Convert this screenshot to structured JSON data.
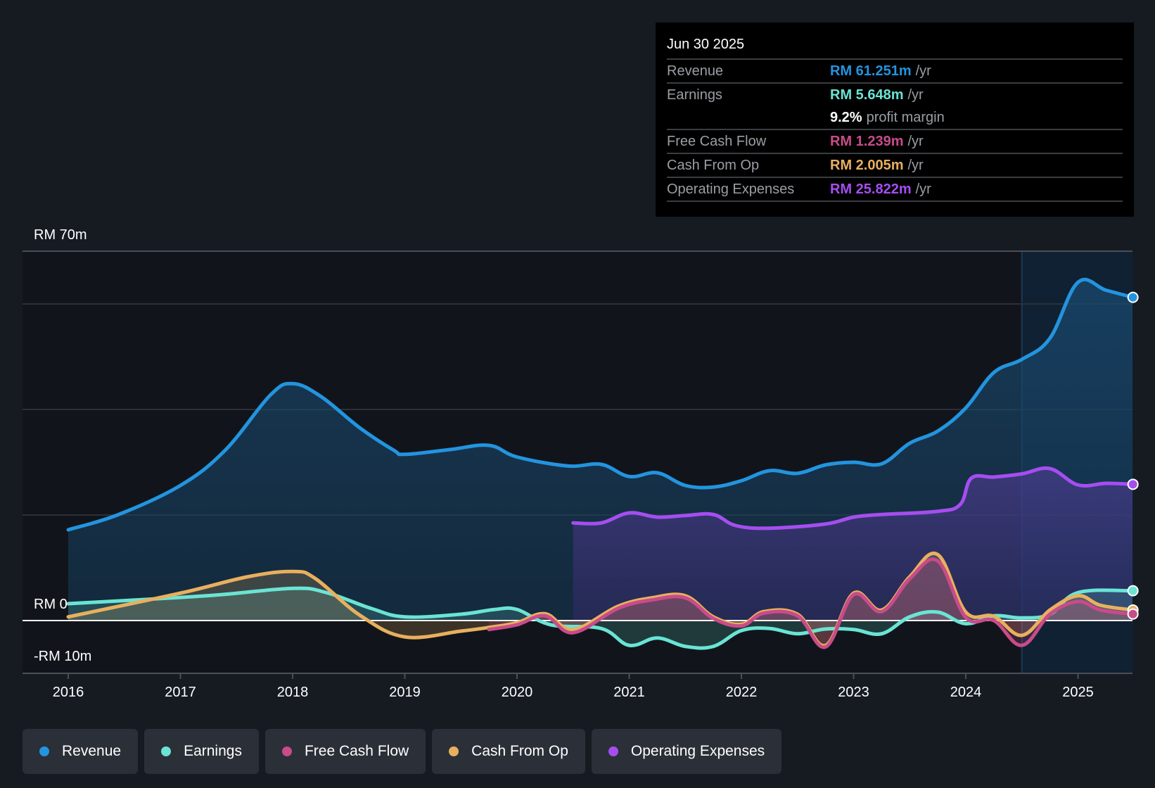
{
  "tooltip": {
    "date": "Jun 30 2025",
    "rows": [
      {
        "label": "Revenue",
        "value": "RM 61.251m",
        "unit": "/yr",
        "color": "#2394df"
      },
      {
        "label": "Earnings",
        "value": "RM 5.648m",
        "unit": "/yr",
        "color": "#6ae4d4"
      },
      {
        "label": "",
        "margin_value": "9.2%",
        "margin_text": "profit margin"
      },
      {
        "label": "Free Cash Flow",
        "value": "RM 1.239m",
        "unit": "/yr",
        "color": "#c84b8a"
      },
      {
        "label": "Cash From Op",
        "value": "RM 2.005m",
        "unit": "/yr",
        "color": "#e8b05e"
      },
      {
        "label": "Operating Expenses",
        "value": "RM 25.822m",
        "unit": "/yr",
        "color": "#a54ef0"
      }
    ]
  },
  "legend": [
    {
      "label": "Revenue",
      "color": "#2394df"
    },
    {
      "label": "Earnings",
      "color": "#6ae4d4"
    },
    {
      "label": "Free Cash Flow",
      "color": "#c84b8a"
    },
    {
      "label": "Cash From Op",
      "color": "#e8b05e"
    },
    {
      "label": "Operating Expenses",
      "color": "#a54ef0"
    }
  ],
  "chart_data": {
    "type": "area",
    "title": "",
    "xlabel": "",
    "ylabel": "",
    "y_tick_labels": [
      {
        "value": 70,
        "label": "RM 70m"
      },
      {
        "value": 0,
        "label": "RM 0"
      },
      {
        "value": -10,
        "label": "-RM 10m"
      }
    ],
    "gridlines": [
      70,
      60,
      40,
      20
    ],
    "ylim": [
      -10,
      70
    ],
    "xlim": [
      2015.6,
      2025.49
    ],
    "x_ticks": [
      2016,
      2017,
      2018,
      2019,
      2020,
      2021,
      2022,
      2023,
      2024,
      2025
    ],
    "highlight_start": 2024.5,
    "grid": true,
    "legend_position": "bottom-left",
    "series": [
      {
        "name": "Revenue",
        "color": "#2394df",
        "points": [
          [
            2016.0,
            17.2
          ],
          [
            2016.45,
            20.1
          ],
          [
            2017.0,
            25.6
          ],
          [
            2017.4,
            32.3
          ],
          [
            2017.8,
            42.7
          ],
          [
            2018.0,
            44.9
          ],
          [
            2018.25,
            42.5
          ],
          [
            2018.6,
            36.5
          ],
          [
            2018.9,
            32.3
          ],
          [
            2019.0,
            31.5
          ],
          [
            2019.4,
            32.4
          ],
          [
            2019.75,
            33.2
          ],
          [
            2020.0,
            31.0
          ],
          [
            2020.45,
            29.3
          ],
          [
            2020.75,
            29.6
          ],
          [
            2021.0,
            27.3
          ],
          [
            2021.25,
            28.0
          ],
          [
            2021.5,
            25.6
          ],
          [
            2021.75,
            25.3
          ],
          [
            2022.0,
            26.5
          ],
          [
            2022.25,
            28.4
          ],
          [
            2022.5,
            27.9
          ],
          [
            2022.75,
            29.5
          ],
          [
            2023.0,
            30.0
          ],
          [
            2023.25,
            29.7
          ],
          [
            2023.5,
            33.6
          ],
          [
            2023.75,
            35.9
          ],
          [
            2024.0,
            40.3
          ],
          [
            2024.25,
            47.0
          ],
          [
            2024.5,
            49.5
          ],
          [
            2024.75,
            53.5
          ],
          [
            2025.0,
            64.1
          ],
          [
            2025.25,
            62.6
          ],
          [
            2025.49,
            61.251
          ]
        ]
      },
      {
        "name": "Operating Expenses",
        "color": "#a54ef0",
        "points": [
          [
            2020.5,
            18.5
          ],
          [
            2020.75,
            18.5
          ],
          [
            2021.0,
            20.4
          ],
          [
            2021.25,
            19.6
          ],
          [
            2021.5,
            19.9
          ],
          [
            2021.75,
            20.1
          ],
          [
            2021.95,
            18.0
          ],
          [
            2022.25,
            17.5
          ],
          [
            2022.75,
            18.3
          ],
          [
            2023.0,
            19.6
          ],
          [
            2023.25,
            20.1
          ],
          [
            2023.75,
            20.7
          ],
          [
            2023.95,
            22.0
          ],
          [
            2024.05,
            27.0
          ],
          [
            2024.25,
            27.2
          ],
          [
            2024.5,
            27.8
          ],
          [
            2024.75,
            28.8
          ],
          [
            2025.0,
            25.7
          ],
          [
            2025.25,
            26.0
          ],
          [
            2025.49,
            25.822
          ]
        ]
      },
      {
        "name": "Earnings",
        "color": "#6ae4d4",
        "points": [
          [
            2016.0,
            3.2
          ],
          [
            2016.6,
            3.9
          ],
          [
            2017.3,
            4.8
          ],
          [
            2018.0,
            6.1
          ],
          [
            2018.3,
            5.3
          ],
          [
            2018.7,
            2.3
          ],
          [
            2019.0,
            0.7
          ],
          [
            2019.5,
            1.2
          ],
          [
            2019.8,
            2.1
          ],
          [
            2020.0,
            2.1
          ],
          [
            2020.3,
            -0.8
          ],
          [
            2020.75,
            -1.5
          ],
          [
            2021.0,
            -4.7
          ],
          [
            2021.25,
            -3.3
          ],
          [
            2021.5,
            -4.9
          ],
          [
            2021.75,
            -4.9
          ],
          [
            2022.0,
            -1.9
          ],
          [
            2022.25,
            -1.5
          ],
          [
            2022.5,
            -2.5
          ],
          [
            2022.75,
            -1.6
          ],
          [
            2023.0,
            -1.7
          ],
          [
            2023.25,
            -2.5
          ],
          [
            2023.5,
            0.7
          ],
          [
            2023.75,
            1.6
          ],
          [
            2024.0,
            -0.6
          ],
          [
            2024.25,
            0.9
          ],
          [
            2024.5,
            0.5
          ],
          [
            2024.75,
            1.2
          ],
          [
            2025.0,
            5.3
          ],
          [
            2025.49,
            5.648
          ]
        ]
      },
      {
        "name": "Cash From Op",
        "color": "#e8b05e",
        "points": [
          [
            2016.0,
            0.7
          ],
          [
            2017.0,
            5.2
          ],
          [
            2017.6,
            8.3
          ],
          [
            2018.0,
            9.3
          ],
          [
            2018.2,
            8.0
          ],
          [
            2018.6,
            1.0
          ],
          [
            2019.0,
            -3.1
          ],
          [
            2019.5,
            -2.0
          ],
          [
            2019.75,
            -1.3
          ],
          [
            2020.0,
            -0.4
          ],
          [
            2020.25,
            1.3
          ],
          [
            2020.5,
            -1.7
          ],
          [
            2020.9,
            2.7
          ],
          [
            2021.2,
            4.3
          ],
          [
            2021.5,
            4.7
          ],
          [
            2021.75,
            0.7
          ],
          [
            2022.0,
            -0.7
          ],
          [
            2022.2,
            1.7
          ],
          [
            2022.5,
            1.2
          ],
          [
            2022.75,
            -4.7
          ],
          [
            2023.0,
            5.2
          ],
          [
            2023.25,
            2.0
          ],
          [
            2023.5,
            8.3
          ],
          [
            2023.75,
            12.5
          ],
          [
            2024.0,
            1.6
          ],
          [
            2024.25,
            0.8
          ],
          [
            2024.5,
            -2.8
          ],
          [
            2024.75,
            2.0
          ],
          [
            2025.0,
            4.7
          ],
          [
            2025.2,
            2.9
          ],
          [
            2025.49,
            2.005
          ]
        ]
      },
      {
        "name": "Free Cash Flow",
        "color": "#c84b8a",
        "points": [
          [
            2019.75,
            -1.7
          ],
          [
            2020.0,
            -0.8
          ],
          [
            2020.25,
            0.9
          ],
          [
            2020.5,
            -2.3
          ],
          [
            2020.9,
            2.3
          ],
          [
            2021.2,
            3.9
          ],
          [
            2021.5,
            4.3
          ],
          [
            2021.75,
            0.4
          ],
          [
            2022.0,
            -1.0
          ],
          [
            2022.2,
            1.4
          ],
          [
            2022.5,
            0.9
          ],
          [
            2022.75,
            -5.0
          ],
          [
            2023.0,
            4.9
          ],
          [
            2023.25,
            1.7
          ],
          [
            2023.5,
            7.9
          ],
          [
            2023.75,
            11.3
          ],
          [
            2024.0,
            0.6
          ],
          [
            2024.25,
            0.0
          ],
          [
            2024.5,
            -4.7
          ],
          [
            2024.75,
            1.2
          ],
          [
            2025.0,
            3.6
          ],
          [
            2025.2,
            2.0
          ],
          [
            2025.49,
            1.239
          ]
        ]
      }
    ]
  }
}
